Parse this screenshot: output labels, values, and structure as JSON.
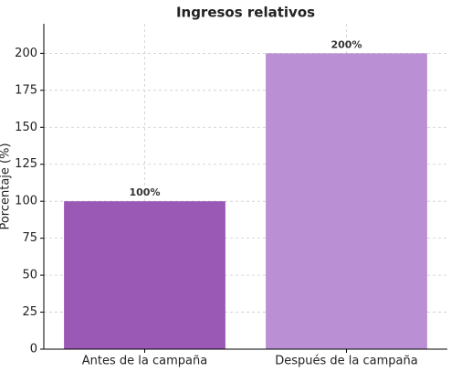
{
  "chart_data": {
    "type": "bar",
    "title": "Ingresos relativos",
    "ylabel": "Porcentaje (%)",
    "categories": [
      "Antes de la campaña",
      "Después de la campaña"
    ],
    "values": [
      100,
      200
    ],
    "value_labels": [
      "100%",
      "200%"
    ],
    "colors": [
      "#9b59b6",
      "#bb8fd3"
    ],
    "ylim": [
      0,
      220
    ],
    "yticks": [
      0,
      25,
      50,
      75,
      100,
      125,
      150,
      175,
      200
    ],
    "grid": true
  }
}
